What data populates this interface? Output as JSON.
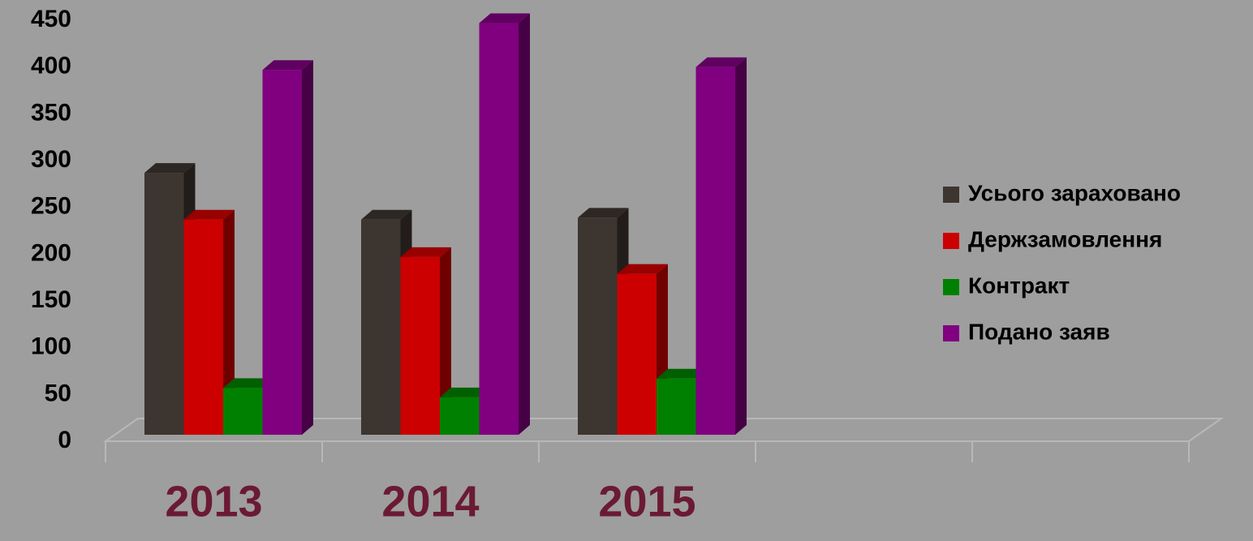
{
  "chart_data": {
    "type": "bar3d",
    "categories": [
      "2013",
      "2014",
      "2015",
      null,
      null
    ],
    "series": [
      {
        "name": "Усього зараховано",
        "color": "#3d3530",
        "values": [
          280,
          230,
          232,
          null,
          null
        ]
      },
      {
        "name": "Держзамовлення",
        "color": "#cc0000",
        "values": [
          230,
          190,
          172,
          null,
          null
        ]
      },
      {
        "name": "Контракт",
        "color": "#008000",
        "values": [
          50,
          40,
          60,
          null,
          null
        ]
      },
      {
        "name": "Подано заяв",
        "color": "#800080",
        "values": [
          390,
          440,
          393,
          null,
          null
        ]
      }
    ],
    "ylim": [
      0,
      450
    ],
    "yticks": [
      0,
      50,
      100,
      150,
      200,
      250,
      300,
      350,
      400,
      450
    ],
    "legend": "right"
  }
}
